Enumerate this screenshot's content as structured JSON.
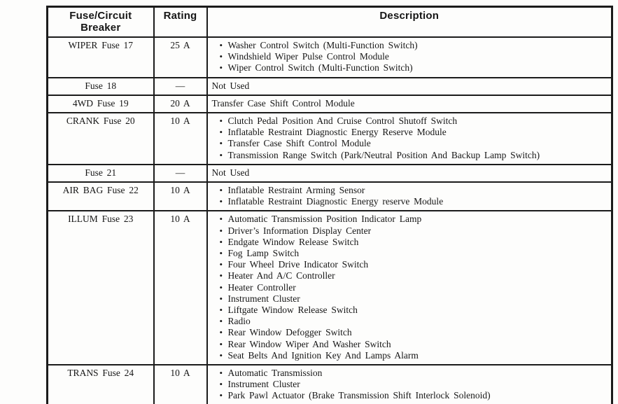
{
  "table": {
    "bullet": "•",
    "headers": [
      "Fuse/Circuit Breaker",
      "Rating",
      "Description"
    ],
    "rows": [
      {
        "name": "WIPER Fuse 17",
        "rating": "25 A",
        "items": [
          "Washer Control Switch (Multi-Function Switch)",
          "Windshield Wiper Pulse Control Module",
          "Wiper Control Switch (Multi-Function Switch)"
        ]
      },
      {
        "name": "Fuse 18",
        "rating": "—",
        "description": "Not Used"
      },
      {
        "name": "4WD Fuse 19",
        "rating": "20 A",
        "description": "Transfer Case Shift Control Module"
      },
      {
        "name": "CRANK Fuse 20",
        "rating": "10 A",
        "items": [
          "Clutch Pedal Position And Cruise Control Shutoff Switch",
          "Inflatable Restraint Diagnostic Energy Reserve Module",
          "Transfer Case Shift Control Module",
          "Transmission Range Switch (Park/Neutral Position And Backup Lamp Switch)"
        ]
      },
      {
        "name": "Fuse 21",
        "rating": "—",
        "description": "Not Used"
      },
      {
        "name": "AIR BAG Fuse 22",
        "rating": "10 A",
        "items": [
          "Inflatable Restraint Arming Sensor",
          "Inflatable Restraint Diagnostic Energy reserve Module"
        ]
      },
      {
        "name": "ILLUM Fuse 23",
        "rating": "10 A",
        "items": [
          "Automatic Transmission Position Indicator Lamp",
          "Driver’s Information Display Center",
          "Endgate Window Release Switch",
          "Fog Lamp Switch",
          "Four Wheel Drive Indicator Switch",
          "Heater And A/C Controller",
          "Heater Controller",
          "Instrument Cluster",
          "Liftgate Window Release Switch",
          "Radio",
          "Rear Window Defogger Switch",
          "Rear Window Wiper And Washer Switch",
          "Seat Belts And Ignition Key And Lamps Alarm"
        ]
      },
      {
        "name": "TRANS Fuse 24",
        "rating": "10 A",
        "items": [
          "Automatic Transmission",
          "Instrument Cluster",
          "Park Pawl Actuator (Brake Transmission Shift Interlock Solenoid)"
        ]
      }
    ]
  }
}
